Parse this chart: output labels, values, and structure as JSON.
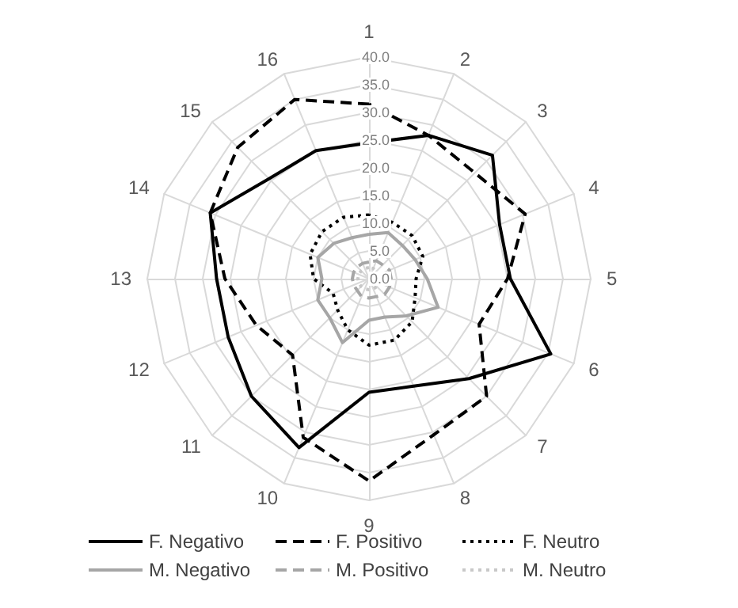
{
  "chart_data": {
    "type": "radar",
    "categories": [
      "1",
      "2",
      "3",
      "4",
      "5",
      "6",
      "7",
      "8",
      "9",
      "10",
      "11",
      "12",
      "13",
      "14",
      "15",
      "16"
    ],
    "ylim": [
      0,
      40
    ],
    "yticks": [
      {
        "value": 0,
        "label": "0.0"
      },
      {
        "value": 5,
        "label": "5.0"
      },
      {
        "value": 10,
        "label": "10.0"
      },
      {
        "value": 15,
        "label": "15.0"
      },
      {
        "value": 20,
        "label": "20.0"
      },
      {
        "value": 25,
        "label": "25.0"
      },
      {
        "value": 30,
        "label": "30.0"
      },
      {
        "value": 35,
        "label": "35.0"
      },
      {
        "value": 40,
        "label": "40.0"
      }
    ],
    "grid": true,
    "legend": "bottom",
    "marker": "none",
    "series": [
      {
        "name": "F. Negativo",
        "color": "#000000",
        "line_style": "solid",
        "values": [
          24.5,
          28,
          31.5,
          25.5,
          25.5,
          35.5,
          25.5,
          21,
          20.5,
          33,
          30,
          27.5,
          27.5,
          31,
          25.5,
          25
        ]
      },
      {
        "name": "F. Positivo",
        "color": "#000000",
        "line_style": "dashed",
        "values": [
          31.5,
          28,
          27,
          30.5,
          25,
          21.5,
          30,
          30.5,
          36.5,
          31,
          19.5,
          22,
          26,
          31,
          33.5,
          35
        ]
      },
      {
        "name": "F. Neutro",
        "color": "#000000",
        "line_style": "dotted",
        "values": [
          11.5,
          11,
          11,
          10.5,
          8.5,
          9,
          11,
          12,
          12,
          10,
          8,
          7,
          10,
          11.5,
          12,
          12
        ]
      },
      {
        "name": "M. Negativo",
        "color": "#a6a6a6",
        "line_style": "solid",
        "values": [
          8,
          9,
          8.5,
          9,
          10.5,
          13.5,
          9.5,
          7.5,
          7.5,
          12.5,
          10,
          10,
          8.5,
          10,
          9,
          8
        ]
      },
      {
        "name": "M. Positivo",
        "color": "#a6a6a6",
        "line_style": "dashed",
        "values": [
          3,
          3.5,
          3.5,
          4,
          4,
          4,
          4,
          3.5,
          3.5,
          3.5,
          3,
          3,
          3,
          3,
          3,
          3
        ]
      },
      {
        "name": "M. Neutro",
        "color": "#c8c8c8",
        "line_style": "dotted",
        "values": [
          2,
          2,
          2,
          2,
          2,
          2,
          2,
          2,
          2,
          2,
          2,
          2,
          2,
          2,
          2,
          2
        ]
      }
    ]
  }
}
